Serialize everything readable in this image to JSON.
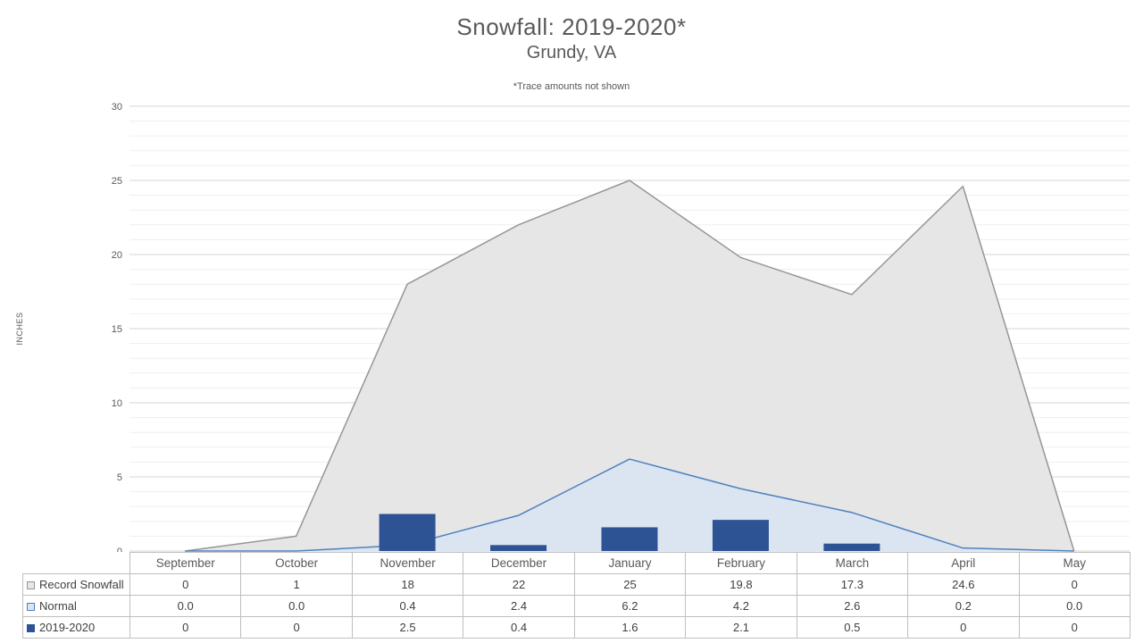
{
  "chart": {
    "title": "Snowfall: 2019-2020*",
    "subtitle": "Grundy, VA",
    "note": "*Trace amounts not shown",
    "y_axis_label": "INCHES"
  },
  "chart_data": {
    "type": "combo",
    "title": "Snowfall: 2019-2020*",
    "subtitle": "Grundy, VA",
    "annotation": "*Trace amounts not shown",
    "ylabel": "INCHES",
    "ylim": [
      0,
      30
    ],
    "y_major_ticks": [
      0,
      5,
      10,
      15,
      20,
      25,
      30
    ],
    "y_minor_step": 1,
    "grid": true,
    "legend_position": "data-table-left",
    "categories": [
      "September",
      "October",
      "November",
      "December",
      "January",
      "February",
      "March",
      "April",
      "May"
    ],
    "series": [
      {
        "name": "Record Snowfall",
        "type": "area",
        "values": [
          0,
          1,
          18,
          22,
          25,
          19.8,
          17.3,
          24.6,
          0
        ],
        "display": [
          "0",
          "1",
          "18",
          "22",
          "25",
          "19.8",
          "17.3",
          "24.6",
          "0"
        ],
        "fill": "#E6E6E6",
        "stroke": "#969696"
      },
      {
        "name": "Normal",
        "type": "area",
        "values": [
          0.0,
          0.0,
          0.4,
          2.4,
          6.2,
          4.2,
          2.6,
          0.2,
          0.0
        ],
        "display": [
          "0.0",
          "0.0",
          "0.4",
          "2.4",
          "6.2",
          "4.2",
          "2.6",
          "0.2",
          "0.0"
        ],
        "fill": "#DBE5F2",
        "stroke": "#4F81BD"
      },
      {
        "name": "2019-2020",
        "type": "bar",
        "values": [
          0,
          0,
          2.5,
          0.4,
          1.6,
          2.1,
          0.5,
          0,
          0
        ],
        "display": [
          "0",
          "0",
          "2.5",
          "0.4",
          "1.6",
          "2.1",
          "0.5",
          "0",
          "0"
        ],
        "fill": "#2E5395",
        "stroke": "#2E5395"
      }
    ],
    "colors": {
      "grid_major": "#D6D6D6",
      "grid_minor": "#EFEFEF",
      "axis_text": "#595959",
      "table_border": "#BFBFBF",
      "table_text": "#404040"
    }
  }
}
